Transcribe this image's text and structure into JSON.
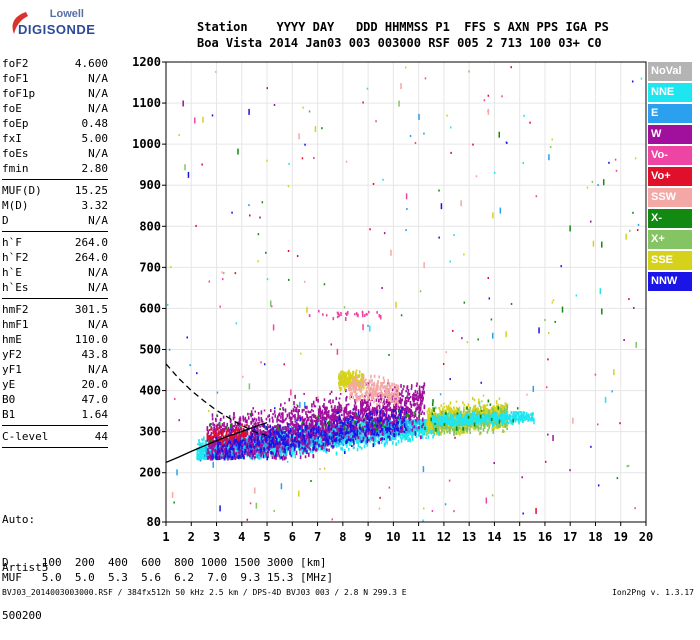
{
  "header": {
    "row1": "Station    YYYY DAY   DDD HHMMSS P1  FFS S AXN PPS IGA PS",
    "row2": "Boa Vista 2014 Jan03 003 003000 RSF 005 2 713 100 03+ C0"
  },
  "logo": {
    "line1": "Lowell",
    "line2": "DIGISONDE"
  },
  "params": [
    {
      "label": "foF2",
      "value": "4.600"
    },
    {
      "label": "foF1",
      "value": "N/A"
    },
    {
      "label": "foF1p",
      "value": "N/A"
    },
    {
      "label": "foE",
      "value": "N/A"
    },
    {
      "label": "foEp",
      "value": "0.48"
    },
    {
      "label": "fxI",
      "value": "5.00"
    },
    {
      "label": "foEs",
      "value": "N/A"
    },
    {
      "label": "fmin",
      "value": "2.80"
    },
    {
      "sep": true
    },
    {
      "label": "MUF(D)",
      "value": "15.25"
    },
    {
      "label": "M(D)",
      "value": "3.32"
    },
    {
      "label": "D",
      "value": "N/A"
    },
    {
      "sep": true
    },
    {
      "label": "h`F",
      "value": "264.0"
    },
    {
      "label": "h`F2",
      "value": "264.0"
    },
    {
      "label": "h`E",
      "value": "N/A"
    },
    {
      "label": "h`Es",
      "value": "N/A"
    },
    {
      "sep": true
    },
    {
      "label": "hmF2",
      "value": "301.5"
    },
    {
      "label": "hmF1",
      "value": "N/A"
    },
    {
      "label": "hmE",
      "value": "110.0"
    },
    {
      "label": "yF2",
      "value": "43.8"
    },
    {
      "label": "yF1",
      "value": "N/A"
    },
    {
      "label": "yE",
      "value": "20.0"
    },
    {
      "label": "B0",
      "value": "47.0"
    },
    {
      "label": "B1",
      "value": "1.64"
    },
    {
      "sep": true
    },
    {
      "label": "C-level",
      "value": "44"
    },
    {
      "sep": true
    }
  ],
  "auto": {
    "line1": "Auto:",
    "line2": "Artist5",
    "line3": "500200"
  },
  "legend": [
    {
      "label": "NoVal",
      "color": "#b4b4b4"
    },
    {
      "label": "NNE",
      "color": "#1ee6f0"
    },
    {
      "label": "E",
      "color": "#2aa0ee"
    },
    {
      "label": "W",
      "color": "#a0109c"
    },
    {
      "label": "Vo-",
      "color": "#ee44a4"
    },
    {
      "label": "Vo+",
      "color": "#e0102a"
    },
    {
      "label": "SSW",
      "color": "#f4a8a6"
    },
    {
      "label": "X-",
      "color": "#128a12"
    },
    {
      "label": "X+",
      "color": "#84c462"
    },
    {
      "label": "SSE",
      "color": "#d6d21c"
    },
    {
      "label": "NNW",
      "color": "#1a14e6"
    }
  ],
  "footer": {
    "row1": "D     100  200  400  600  800 1000 1500 3000 [km]",
    "row2": "MUF   5.0  5.0  5.3  5.6  6.2  7.0  9.3 15.3 [MHz]",
    "row3": "BVJ03_2014003003000.RSF / 384fx512h 50 kHz 2.5 km / DPS-4D BVJ03 003 / 2.8 N 299.3 E",
    "row4": "Ion2Png v. 1.3.17"
  },
  "chart_data": {
    "type": "scatter",
    "xlim": [
      1,
      20
    ],
    "ylim": [
      80,
      1200
    ],
    "x_ticks": [
      1,
      2,
      3,
      4,
      5,
      6,
      7,
      8,
      9,
      10,
      11,
      12,
      13,
      14,
      15,
      16,
      17,
      18,
      19,
      20
    ],
    "y_ticks": [
      80,
      200,
      300,
      400,
      500,
      600,
      700,
      800,
      900,
      1000,
      1100,
      1200
    ],
    "grid": true,
    "legend_position": "right",
    "clusters": [
      {
        "color": "#1ee6f0",
        "x": [
          2.2,
          11.8
        ],
        "y": [
          240,
          330
        ],
        "density": 2600,
        "trend": [
          250,
          325
        ]
      },
      {
        "color": "#2aa0ee",
        "x": [
          2.5,
          11.0
        ],
        "y": [
          245,
          330
        ],
        "density": 700,
        "trend": [
          255,
          325
        ]
      },
      {
        "color": "#a0109c",
        "x": [
          2.6,
          11.2
        ],
        "y": [
          240,
          420
        ],
        "density": 1800,
        "trend": [
          270,
          370
        ]
      },
      {
        "color": "#1a14e6",
        "x": [
          2.8,
          10.5
        ],
        "y": [
          240,
          360
        ],
        "density": 500,
        "trend": [
          260,
          330
        ]
      },
      {
        "color": "#d6d21c",
        "x": [
          11.3,
          14.5
        ],
        "y": [
          300,
          400
        ],
        "density": 700,
        "trend": [
          330,
          345
        ]
      },
      {
        "color": "#84c462",
        "x": [
          11.5,
          14.5
        ],
        "y": [
          300,
          380
        ],
        "density": 350,
        "trend": [
          325,
          335
        ]
      },
      {
        "color": "#1ee6f0",
        "x": [
          11.5,
          15.5
        ],
        "y": [
          310,
          350
        ],
        "density": 450,
        "trend": [
          330,
          340
        ]
      },
      {
        "color": "#d6d21c",
        "x": [
          7.8,
          8.8
        ],
        "y": [
          400,
          460
        ],
        "density": 220,
        "trend": [
          430,
          430
        ]
      },
      {
        "color": "#f4a8a6",
        "x": [
          8.2,
          10.2
        ],
        "y": [
          370,
          460
        ],
        "density": 250,
        "trend": [
          410,
          400
        ]
      },
      {
        "color": "#ee44a4",
        "x": [
          6.5,
          9.5
        ],
        "y": [
          575,
          600
        ],
        "density": 30,
        "trend": [
          585,
          590
        ]
      },
      {
        "color": "#e0102a",
        "x": [
          2.6,
          4.2
        ],
        "y": [
          270,
          320
        ],
        "density": 80,
        "trend": [
          290,
          300
        ]
      },
      {
        "color": "#128a12",
        "x": [
          2.5,
          15
        ],
        "y": [
          280,
          400
        ],
        "density": 60,
        "trend": [
          330,
          340
        ]
      }
    ],
    "sparse_noise": {
      "x": [
        1,
        20
      ],
      "y": [
        80,
        1200
      ],
      "count": 260
    },
    "curves": [
      {
        "style": "solid",
        "x": [
          1,
          1.5,
          2,
          2.5,
          3,
          3.5,
          4,
          4.5,
          5
        ],
        "y": [
          225,
          238,
          252,
          265,
          278,
          290,
          300,
          312,
          322
        ]
      },
      {
        "style": "dashed",
        "x": [
          1,
          1.5,
          2,
          2.5,
          3,
          3.5,
          4,
          4.5,
          5
        ],
        "y": [
          465,
          430,
          400,
          375,
          352,
          333,
          315,
          300,
          290
        ]
      }
    ]
  }
}
